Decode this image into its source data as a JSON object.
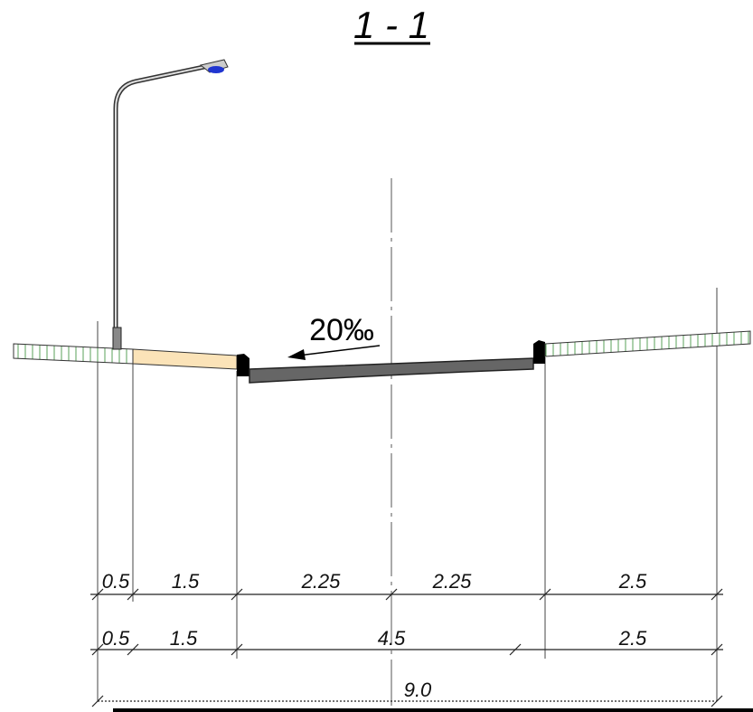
{
  "title": "1 - 1",
  "slope": "20‰",
  "dimensions": {
    "row1": [
      "0.5",
      "1.5",
      "2.25",
      "2.25",
      "2.5"
    ],
    "row2": [
      "0.5",
      "1.5",
      "4.5",
      "2.5"
    ],
    "total": "9.0"
  }
}
